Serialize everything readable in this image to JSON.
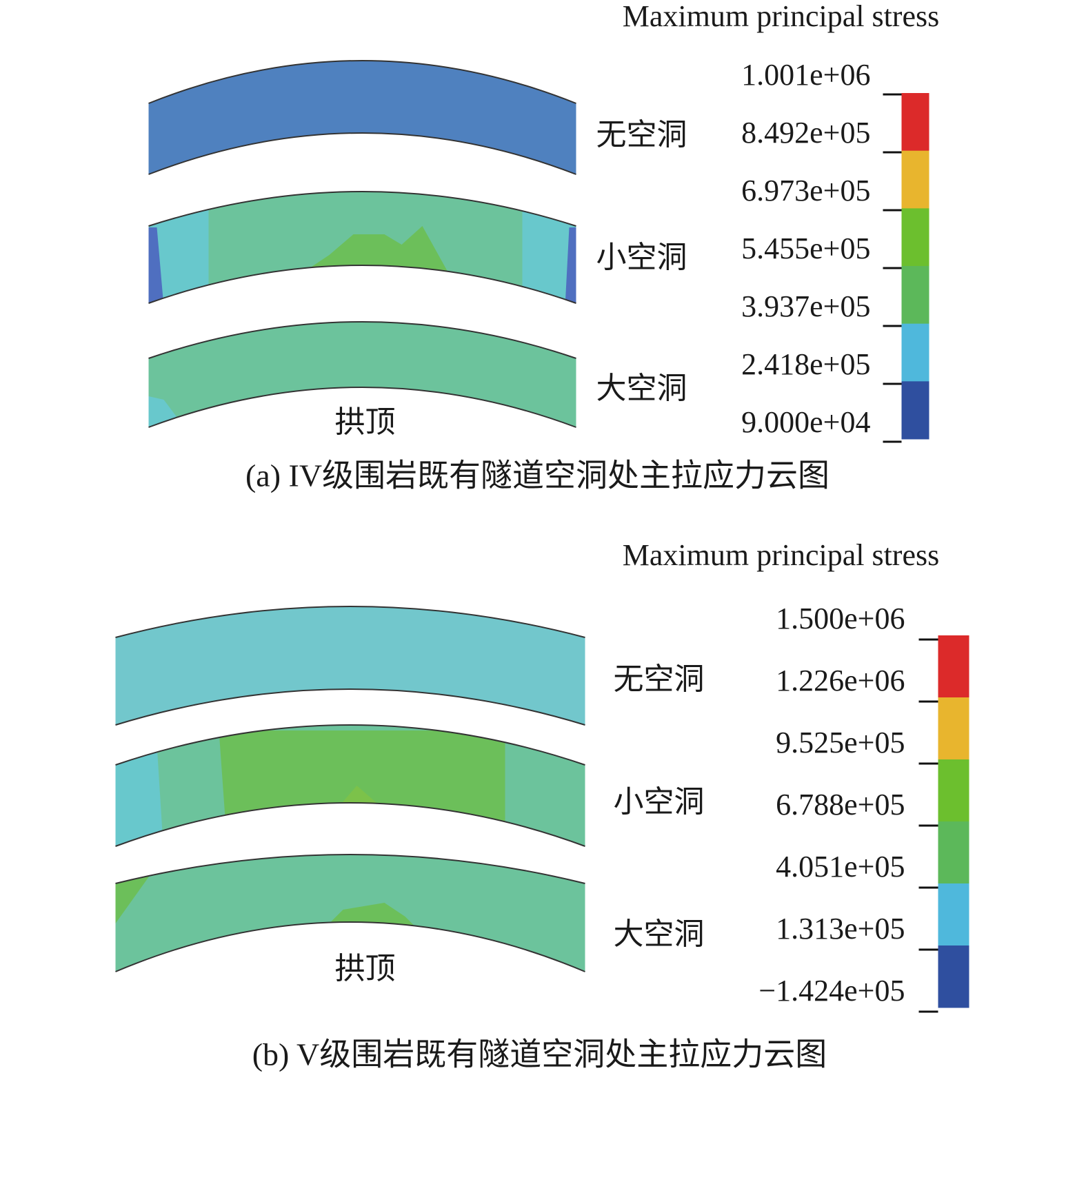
{
  "panels": [
    {
      "legend_title": "Maximum principal stress",
      "legend_labels": [
        "1.001e+06",
        "8.492e+05",
        "6.973e+05",
        "5.455e+05",
        "3.937e+05",
        "2.418e+05",
        "9.000e+04"
      ],
      "arch_labels": [
        "无空洞",
        "小空洞",
        "大空洞"
      ],
      "crown_label": "拱顶",
      "caption": "(a) IV级围岩既有隧道空洞处主拉应力云图"
    },
    {
      "legend_title": "Maximum principal stress",
      "legend_labels": [
        "1.500e+06",
        "1.226e+06",
        "9.525e+05",
        "6.788e+05",
        "4.051e+05",
        "1.313e+05",
        "−1.424e+05"
      ],
      "arch_labels": [
        "无空洞",
        "小空洞",
        "大空洞"
      ],
      "crown_label": "拱顶",
      "caption": "(b) V级围岩既有隧道空洞处主拉应力云图"
    }
  ]
}
